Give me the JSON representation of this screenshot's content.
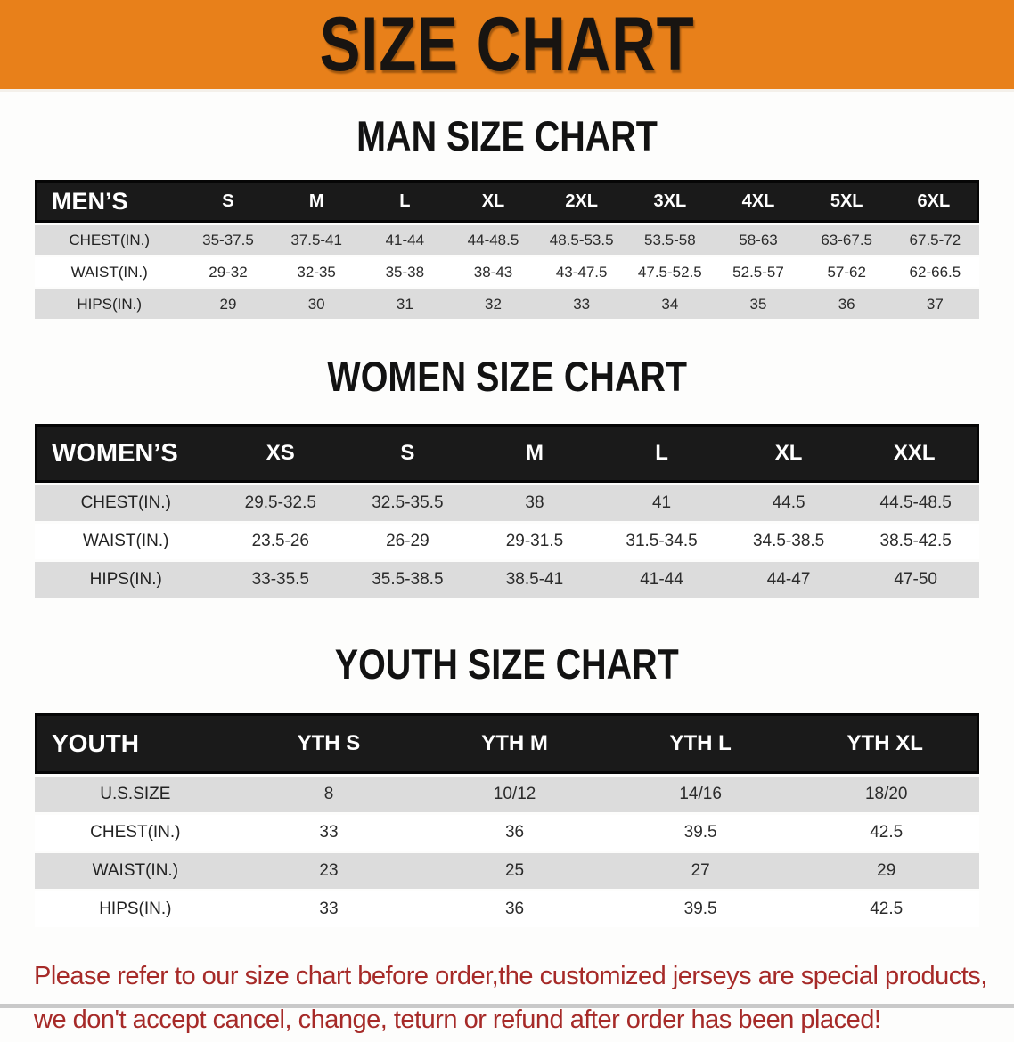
{
  "banner": {
    "title": "SIZE CHART",
    "bg_color": "#e8801a",
    "text_color": "#181411"
  },
  "colors": {
    "table_header_bg": "#1a1a1a",
    "row_shaded": "#dcdcdc",
    "row_plain": "#ffffff",
    "disclaimer_text": "#a62a28"
  },
  "sections": [
    {
      "heading": "MAN SIZE CHART",
      "corner_label": "MEN’S",
      "columns": [
        "S",
        "M",
        "L",
        "XL",
        "2XL",
        "3XL",
        "4XL",
        "5XL",
        "6XL"
      ],
      "rows": [
        {
          "label": "CHEST(IN.)",
          "values": [
            "35-37.5",
            "37.5-41",
            "41-44",
            "44-48.5",
            "48.5-53.5",
            "53.5-58",
            "58-63",
            "63-67.5",
            "67.5-72"
          ]
        },
        {
          "label": "WAIST(IN.)",
          "values": [
            "29-32",
            "32-35",
            "35-38",
            "38-43",
            "43-47.5",
            "47.5-52.5",
            "52.5-57",
            "57-62",
            "62-66.5"
          ]
        },
        {
          "label": "HIPS(IN.)",
          "values": [
            "29",
            "30",
            "31",
            "32",
            "33",
            "34",
            "35",
            "36",
            "37"
          ]
        }
      ]
    },
    {
      "heading": "WOMEN SIZE CHART",
      "corner_label": "WOMEN’S",
      "columns": [
        "XS",
        "S",
        "M",
        "L",
        "XL",
        "XXL"
      ],
      "rows": [
        {
          "label": "CHEST(IN.)",
          "values": [
            "29.5-32.5",
            "32.5-35.5",
            "38",
            "41",
            "44.5",
            "44.5-48.5"
          ]
        },
        {
          "label": "WAIST(IN.)",
          "values": [
            "23.5-26",
            "26-29",
            "29-31.5",
            "31.5-34.5",
            "34.5-38.5",
            "38.5-42.5"
          ]
        },
        {
          "label": "HIPS(IN.)",
          "values": [
            "33-35.5",
            "35.5-38.5",
            "38.5-41",
            "41-44",
            "44-47",
            "47-50"
          ]
        }
      ]
    },
    {
      "heading": "YOUTH SIZE CHART",
      "corner_label": "YOUTH",
      "columns": [
        "YTH S",
        "YTH M",
        "YTH L",
        "YTH XL"
      ],
      "rows": [
        {
          "label": "U.S.SIZE",
          "values": [
            "8",
            "10/12",
            "14/16",
            "18/20"
          ]
        },
        {
          "label": "CHEST(IN.)",
          "values": [
            "33",
            "36",
            "39.5",
            "42.5"
          ]
        },
        {
          "label": "WAIST(IN.)",
          "values": [
            "23",
            "25",
            "27",
            "29"
          ]
        },
        {
          "label": "HIPS(IN.)",
          "values": [
            "33",
            "36",
            "39.5",
            "42.5"
          ]
        }
      ]
    }
  ],
  "disclaimer": {
    "line1": "Please refer to our size chart before order,the customized jerseys are special products,",
    "line2": "we don't accept cancel, change, teturn or refund after order has been placed!"
  }
}
